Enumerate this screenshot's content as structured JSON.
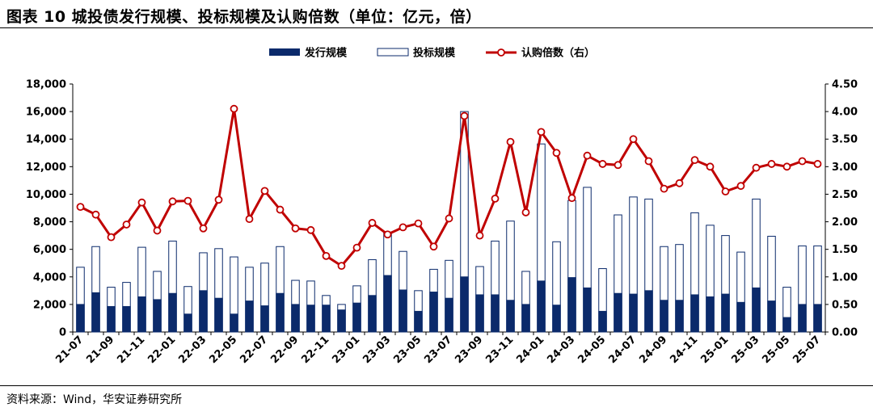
{
  "title": "图表 10 城投债发行规模、投标规模及认购倍数（单位：亿元，倍）",
  "source": "资料来源：Wind，华安证券研究所",
  "chart_data": {
    "type": "bar",
    "legend": {
      "placement": "top-center"
    },
    "categories": [
      "21-07",
      "21-08",
      "21-09",
      "21-10",
      "21-11",
      "21-12",
      "22-01",
      "22-02",
      "22-03",
      "22-04",
      "22-05",
      "22-06",
      "22-07",
      "22-08",
      "22-09",
      "22-10",
      "22-11",
      "22-12",
      "23-01",
      "23-02",
      "23-03",
      "23-04",
      "23-05",
      "23-06",
      "23-07",
      "23-08",
      "23-09",
      "23-10",
      "23-11",
      "23-12",
      "24-01",
      "24-02",
      "24-03",
      "24-04",
      "24-05",
      "24-06",
      "24-07",
      "24-08",
      "24-09",
      "24-10",
      "24-11",
      "24-12",
      "25-01",
      "25-02",
      "25-03",
      "25-04",
      "25-05",
      "25-06",
      "25-07"
    ],
    "x_tick_labels": [
      "21-07",
      "21-09",
      "21-11",
      "22-01",
      "22-03",
      "22-05",
      "22-07",
      "22-09",
      "22-11",
      "23-01",
      "23-03",
      "23-05",
      "23-07",
      "23-09",
      "23-11",
      "24-01",
      "24-03",
      "24-05",
      "24-07",
      "24-09",
      "24-11",
      "25-01",
      "25-03",
      "25-05",
      "25-07"
    ],
    "series": [
      {
        "name": "发行规模",
        "axis": "left",
        "color": "#0b2a6b",
        "values": [
          2000,
          2850,
          1850,
          1850,
          2550,
          2350,
          2800,
          1300,
          3000,
          2450,
          1300,
          2250,
          1900,
          2800,
          2000,
          1950,
          1950,
          1600,
          2100,
          2650,
          4100,
          3050,
          1500,
          2900,
          2450,
          4000,
          2700,
          2700,
          2300,
          2000,
          3700,
          1950,
          3950,
          3200,
          1500,
          2800,
          2750,
          3000,
          2300,
          2300,
          2700,
          2550,
          2750,
          2150,
          3200,
          2250,
          1050,
          2000,
          2000
        ]
      },
      {
        "name": "投标规模",
        "axis": "left",
        "color": "#0b2a6b",
        "values": [
          4700,
          6200,
          3250,
          3600,
          6150,
          4400,
          6600,
          3300,
          5750,
          6050,
          5450,
          4700,
          5000,
          6200,
          3750,
          3700,
          2650,
          2000,
          3350,
          5250,
          7250,
          5850,
          3000,
          4550,
          5200,
          16000,
          4750,
          6600,
          8050,
          4400,
          13650,
          6550,
          9550,
          10500,
          4600,
          8500,
          9800,
          9650,
          6200,
          6350,
          8650,
          7750,
          7000,
          5800,
          9650,
          6950,
          3250,
          6250,
          6250
        ]
      },
      {
        "name": "认购倍数（右）",
        "axis": "right",
        "type": "line",
        "color": "#c00000",
        "values": [
          2.27,
          2.13,
          1.72,
          1.95,
          2.35,
          1.84,
          2.37,
          2.38,
          1.88,
          2.4,
          4.05,
          2.05,
          2.56,
          2.22,
          1.88,
          1.85,
          1.38,
          1.2,
          1.53,
          1.98,
          1.77,
          1.9,
          1.97,
          1.55,
          2.06,
          3.92,
          1.75,
          2.42,
          3.45,
          2.17,
          3.63,
          3.25,
          2.43,
          3.2,
          3.05,
          3.03,
          3.5,
          3.1,
          2.6,
          2.7,
          3.12,
          3.0,
          2.55,
          2.65,
          2.98,
          3.05,
          3.0,
          3.1,
          3.05
        ]
      }
    ],
    "y_left": {
      "ylim": [
        0,
        18000
      ],
      "ticks": [
        "0",
        "2,000",
        "4,000",
        "6,000",
        "8,000",
        "10,000",
        "12,000",
        "14,000",
        "16,000",
        "18,000"
      ]
    },
    "y_right": {
      "ylim": [
        0,
        4.5
      ],
      "ticks": [
        "0.00",
        "0.50",
        "1.00",
        "1.50",
        "2.00",
        "2.50",
        "3.00",
        "3.50",
        "4.00",
        "4.50"
      ]
    },
    "grid": false
  }
}
